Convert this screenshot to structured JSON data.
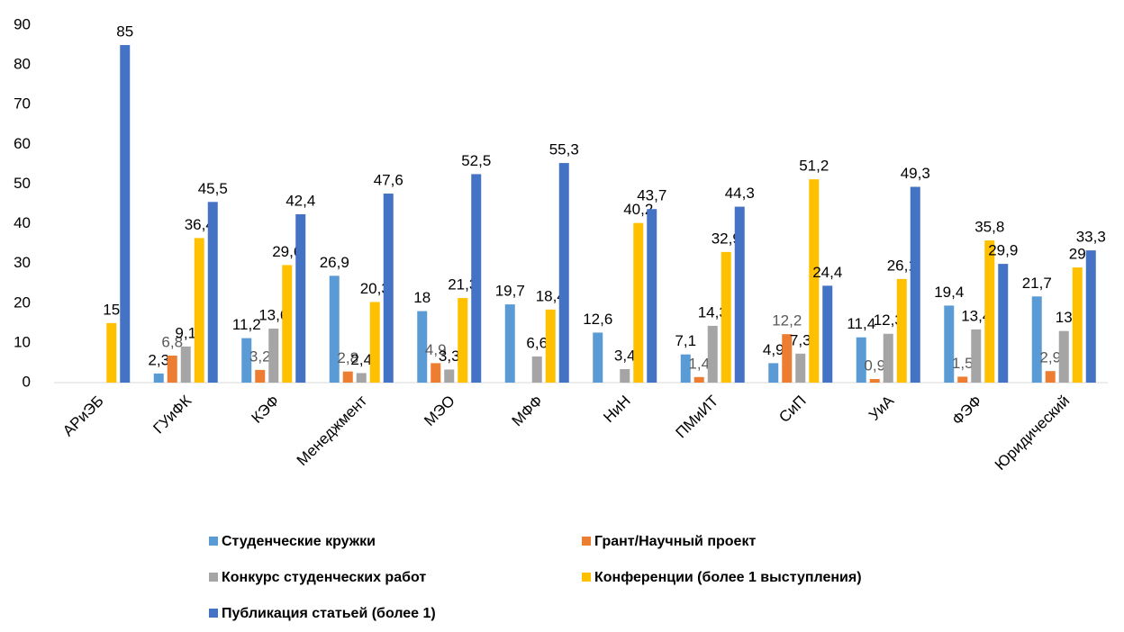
{
  "chart_data": {
    "type": "bar",
    "categories": [
      "АРиЭБ",
      "ГУиФК",
      "КЭФ",
      "Менеджмент",
      "МЭО",
      "МФФ",
      "НиН",
      "ПМиИТ",
      "СиП",
      "УиА",
      "ФЭФ",
      "Юридический"
    ],
    "series": [
      {
        "name": "Студенческие кружки",
        "color": "#5b9bd5",
        "values": [
          null,
          2.3,
          11.2,
          26.9,
          18,
          19.7,
          12.6,
          7.1,
          4.9,
          11.4,
          19.4,
          21.7
        ],
        "value_labels": [
          null,
          "2,3",
          "11,2",
          "26,9",
          "18",
          "19,7",
          "12,6",
          "7,1",
          "4,9",
          "11,4",
          "19,4",
          "21,7"
        ]
      },
      {
        "name": "Грант/Научный проект",
        "color": "#ed7d31",
        "values": [
          null,
          6.8,
          3.2,
          2.8,
          4.9,
          null,
          null,
          1.4,
          12.2,
          0.9,
          1.5,
          2.9
        ],
        "value_labels": [
          null,
          "6,8",
          "3,2",
          "2,8",
          "4,9",
          null,
          null,
          "1,4",
          "12,2",
          "0,9",
          "1,5",
          "2,9"
        ]
      },
      {
        "name": "Конкурс студенческих работ",
        "color": "#a5a5a5",
        "values": [
          null,
          9.1,
          13.6,
          2.4,
          3.3,
          6.6,
          3.4,
          14.3,
          7.3,
          12.3,
          13.4,
          13
        ],
        "value_labels": [
          null,
          "9,1",
          "13,6",
          "2,4",
          "3,3",
          "6,6",
          "3,4",
          "14,3",
          "7,3",
          "12,3",
          "13,4",
          "13"
        ]
      },
      {
        "name": "Конференции (более 1 выступления)",
        "color": "#ffc000",
        "values": [
          15,
          36.4,
          29.6,
          20.3,
          21.3,
          18.4,
          40.2,
          32.9,
          51.2,
          26.1,
          35.8,
          29
        ],
        "value_labels": [
          "15",
          "36,4",
          "29,6",
          "20,3",
          "21,3",
          "18,4",
          "40,2",
          "32,9",
          "51,2",
          "26,1",
          "35,8",
          "29"
        ]
      },
      {
        "name": "Публикация статьей (более 1)",
        "color": "#4472c4",
        "values": [
          85,
          45.5,
          42.4,
          47.6,
          52.5,
          55.3,
          43.7,
          44.3,
          24.4,
          49.3,
          29.9,
          33.3
        ],
        "value_labels": [
          "85",
          "45,5",
          "42,4",
          "47,6",
          "52,5",
          "55,3",
          "43,7",
          "44,3",
          "24,4",
          "49,3",
          "29,9",
          "33,3"
        ]
      }
    ],
    "ylim": [
      0,
      90
    ],
    "yticks": [
      0,
      10,
      20,
      30,
      40,
      50,
      60,
      70,
      80,
      90
    ],
    "grid": false
  }
}
